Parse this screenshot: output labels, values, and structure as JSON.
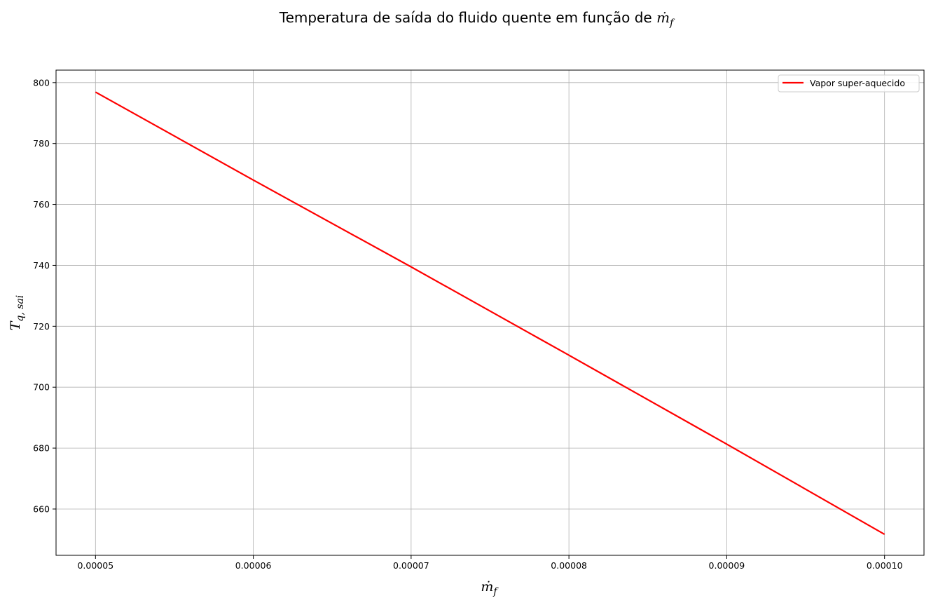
{
  "chart_data": {
    "type": "line",
    "title_text": "Temperatura de saída do fluido quente em função de ",
    "title_math": "ṁ",
    "title_math_sub": "f",
    "xlabel_main": "ṁ",
    "xlabel_sub": "f",
    "ylabel_main": "T",
    "ylabel_sub": "q, sai",
    "xlim": [
      4.75e-05,
      0.0001025
    ],
    "ylim": [
      644.8,
      804.1
    ],
    "x_ticks": [
      5e-05,
      6e-05,
      7e-05,
      8e-05,
      9e-05,
      0.0001
    ],
    "x_tick_labels": [
      "0.00005",
      "0.00006",
      "0.00007",
      "0.00008",
      "0.00009",
      "0.00010"
    ],
    "y_ticks": [
      660,
      680,
      700,
      720,
      740,
      760,
      780,
      800
    ],
    "y_tick_labels": [
      "660",
      "680",
      "700",
      "720",
      "740",
      "760",
      "780",
      "800"
    ],
    "grid": true,
    "legend_position": "top-right",
    "series": [
      {
        "name": "Vapor super-aquecido",
        "color": "#ff0000",
        "x": [
          5e-05,
          6e-05,
          7e-05,
          8e-05,
          9e-05,
          0.0001
        ],
        "y": [
          796.9,
          768.0,
          739.5,
          710.5,
          681.3,
          651.7
        ]
      }
    ]
  }
}
